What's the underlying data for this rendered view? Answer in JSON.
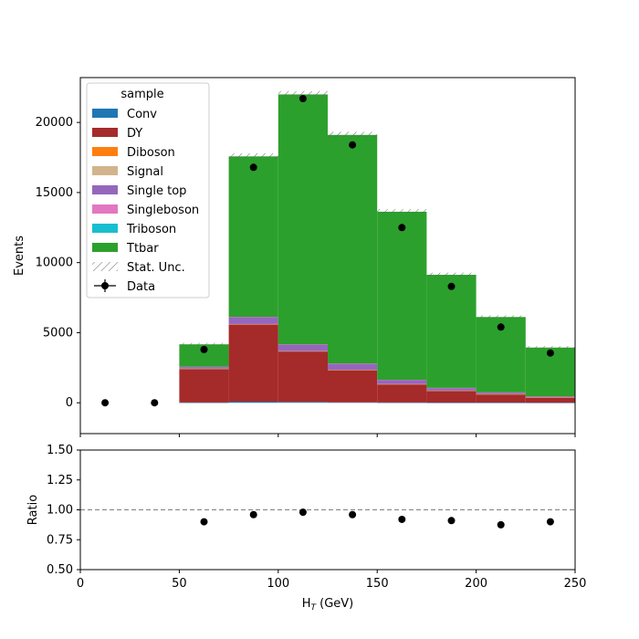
{
  "chart_data": {
    "type": "bar",
    "stacked": true,
    "x_edges": [
      0,
      25,
      50,
      75,
      100,
      125,
      150,
      175,
      200,
      225,
      250
    ],
    "xlabel_main": "H",
    "xlabel_sub": "T",
    "xlabel_unit": " (GeV)",
    "ylabel": "Events",
    "ylim": [
      -2200,
      23200
    ],
    "yticks": [
      0,
      5000,
      10000,
      15000,
      20000
    ],
    "xticks": [
      0,
      50,
      100,
      150,
      200,
      250
    ],
    "series": [
      {
        "name": "Conv",
        "color": "#1f77b4",
        "values": [
          0,
          0,
          20,
          80,
          60,
          30,
          20,
          10,
          10,
          5
        ]
      },
      {
        "name": "DY",
        "color": "#a52a2a",
        "values": [
          0,
          0,
          2400,
          5500,
          3600,
          2300,
          1300,
          850,
          600,
          380
        ]
      },
      {
        "name": "Diboson",
        "color": "#ff7f0e",
        "values": [
          0,
          0,
          10,
          30,
          20,
          15,
          10,
          8,
          5,
          3
        ]
      },
      {
        "name": "Signal",
        "color": "#d2b48c",
        "values": [
          0,
          0,
          5,
          10,
          10,
          8,
          5,
          3,
          2,
          1
        ]
      },
      {
        "name": "Single top",
        "color": "#9467bd",
        "values": [
          0,
          0,
          130,
          500,
          470,
          440,
          300,
          190,
          120,
          70
        ]
      },
      {
        "name": "Singleboson",
        "color": "#e377c2",
        "values": [
          0,
          0,
          5,
          10,
          10,
          8,
          5,
          3,
          2,
          1
        ]
      },
      {
        "name": "Triboson",
        "color": "#17becf",
        "values": [
          0,
          0,
          0,
          0,
          0,
          0,
          0,
          0,
          0,
          0
        ]
      },
      {
        "name": "Ttbar",
        "color": "#2ca02c",
        "values": [
          0,
          0,
          1600,
          11450,
          17830,
          16310,
          11990,
          8066,
          5381,
          3480
        ]
      }
    ],
    "stat_unc_label": "Stat. Unc.",
    "data": {
      "name": "Data",
      "x": [
        12.5,
        37.5,
        62.5,
        87.5,
        112.5,
        137.5,
        162.5,
        187.5,
        212.5,
        237.5
      ],
      "y": [
        0,
        0,
        3800,
        16800,
        21700,
        18400,
        12500,
        8300,
        5400,
        3550
      ]
    },
    "legend_title": "sample",
    "legend_position": "upper-left",
    "ratio": {
      "ylabel": "Ratio",
      "ylim": [
        0.5,
        1.5
      ],
      "yticks": [
        "0.50",
        "0.75",
        "1.00",
        "1.25",
        "1.50"
      ],
      "reference": 1.0,
      "x": [
        62.5,
        87.5,
        112.5,
        137.5,
        162.5,
        187.5,
        212.5,
        237.5
      ],
      "y": [
        0.9,
        0.96,
        0.98,
        0.96,
        0.92,
        0.91,
        0.875,
        0.9
      ]
    }
  }
}
